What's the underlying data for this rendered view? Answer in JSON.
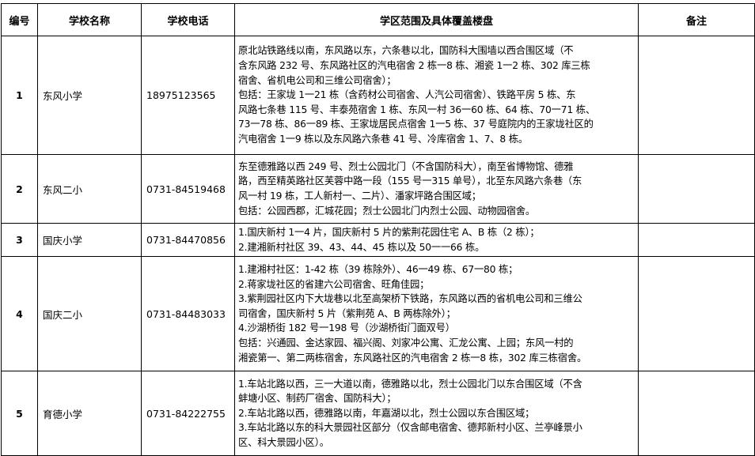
{
  "headers": [
    "编号",
    "学校名称",
    "学校电话",
    "学区范围及具体覆盖楼盘",
    "备注"
  ],
  "rows": [
    {
      "no": "1",
      "school": "东风小学",
      "phone": "18975123565",
      "area": [
        "原北站铁路线以南，东风路以东，六条巷以北，国防科大围墙以西合围区域（不",
        "含东风路 232 号、东风路社区的汽电宿舍 2 栋一8 栋、湘瓷 1一2 栋、302 库三栋",
        "宿舍、省机电公司和三维公司宿舍）；",
        "包括：王家垅 1一21 栋（含药材公司宿舍、人汽公司宿舍）、铁路平房 5 栋、东",
        "风路七条巷 115 号、丰泰苑宿舍 1 栋、东风一村 36一60 栋、64 栋、70一71 栋、",
        "73一78 栋、86一89 栋、王家垅居民点宿舍 1一5 栋、37 号庭院内的王家垅社区的",
        "汽电宿舍 1一9 栋以及东风路六条巷 41 号、冷库宿舍 1、7、8 栋。"
      ],
      "note": ""
    },
    {
      "no": "2",
      "school": "东风二小",
      "phone": "0731-84519468",
      "area": [
        "东至德雅路以西 249 号、烈士公园北门（不含国防科大），南至省博物馆、德雅",
        "路，西至精英路社区芙蓉中路一段（155 号一315 单号），北至东风路六条巷（东",
        "风一村 19 栋，工人新村一、二片）、潘家坪路合围区域；",
        "包括：公园西郡，汇城花园；烈士公园北门内烈士公园、动物园宿舍。"
      ],
      "note": ""
    },
    {
      "no": "3",
      "school": "国庆小学",
      "phone": "0731-84470856",
      "area": [
        "1.国庆新村 1一4 片，国庆新村 5 片的紫荆花园住宅 A、B 栋（2 栋）；",
        "2.建湘新村社区 39、43、44、45 栋以及 50一一66 栋。"
      ],
      "note": ""
    },
    {
      "no": "4",
      "school": "国庆二小",
      "phone": "0731-84483033",
      "area": [
        "1.建湘村社区：1-42 栋（39 栋除外）、46一49 栋、67一80 栋；",
        "2.蒋家垅社区的省建六公司宿舍、旺角佳园；",
        "3.紫荆园社区内下大垅巷以北至高架桥下铁路，东风路以西的省机电公司和三维公",
        "司宿舍，国庆新村 5 片（紫荆苑 A、B 两栋除外）；",
        "4.沙湖桥街 182 号一198 号（沙湖桥街门面双号）",
        "包括：兴通园、金达家园、福兴阁、刘家冲公寓、汇龙公寓、上园；东风一村的",
        "湘瓷第一、第二两栋宿舍，东风路社区的汽电宿舍 2 栋一8 栋，302 库三栋宿舍。"
      ],
      "note": ""
    },
    {
      "no": "5",
      "school": "育德小学",
      "phone": "0731-84222755",
      "area": [
        "1.车站北路以西，三一大道以南，德雅路以北，烈士公园北门以东合围区域（不含",
        "蚌塘小区、制药厂宿舍、国防科大）；",
        "2.车站北路以西，德雅路以南，年嘉湖以北，烈士公园以东合围区域；",
        "3.车站北路以东的科大景园社区部分（仅含邮电宿舍、德邦新村小区、兰亭峰景小",
        "区、科大景园小区）。"
      ],
      "note": ""
    }
  ]
}
